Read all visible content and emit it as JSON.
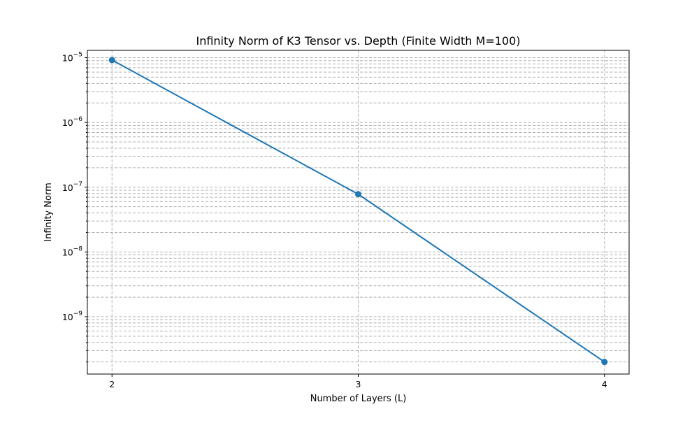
{
  "chart_data": {
    "type": "line",
    "title": "Infinity Norm of K3 Tensor vs. Depth (Finite Width M=100)",
    "xlabel": "Number of Layers (L)",
    "ylabel": "Infinity Norm",
    "y_scale": "log",
    "grid": "on (both major and minor, dashed)",
    "legend": "none",
    "x_ticks": [
      2,
      3,
      4
    ],
    "x_tick_labels": [
      "2",
      "3",
      "4"
    ],
    "y_tick_exponents": [
      -9,
      -8,
      -7,
      -6,
      -5
    ],
    "xlim": [
      1.9,
      4.1
    ],
    "ylim": [
      1.3e-10,
      1.3e-05
    ],
    "series": [
      {
        "x": [
          2,
          3,
          4
        ],
        "y": [
          9.2e-06,
          7.8e-08,
          2e-10
        ],
        "color": "#1f77b4",
        "marker": "circle"
      }
    ]
  }
}
